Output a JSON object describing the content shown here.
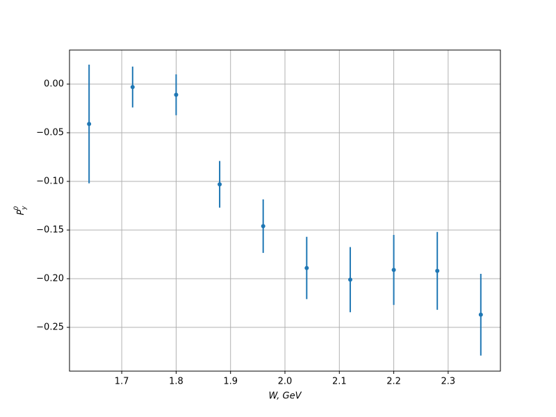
{
  "chart_data": {
    "type": "errorbar",
    "x": [
      1.64,
      1.72,
      1.8,
      1.88,
      1.96,
      2.04,
      2.12,
      2.2,
      2.28,
      2.36
    ],
    "values": [
      -0.041,
      -0.003,
      -0.011,
      -0.103,
      -0.146,
      -0.189,
      -0.201,
      -0.191,
      -0.192,
      -0.237
    ],
    "errors": [
      0.061,
      0.021,
      0.021,
      0.024,
      0.0275,
      0.032,
      0.0335,
      0.036,
      0.04,
      0.042
    ],
    "color": "#1f77b4",
    "xlabel": "W, GeV",
    "ylabel": {
      "base": "P",
      "sub": "y",
      "sup": "0"
    },
    "xlim": [
      1.604,
      2.396
    ],
    "ylim": [
      -0.295,
      0.035
    ],
    "xticks": [
      1.7,
      1.8,
      1.9,
      {
        "value": 2.0,
        "label": "2.0"
      },
      2.1,
      2.2,
      2.3
    ],
    "yticks": [
      {
        "value": 0,
        "label": "0.00"
      },
      {
        "value": -0.05,
        "label": "−0.05"
      },
      {
        "value": -0.1,
        "label": "−0.10"
      },
      {
        "value": -0.15,
        "label": "−0.15"
      },
      {
        "value": -0.2,
        "label": "−0.20"
      },
      {
        "value": -0.25,
        "label": "−0.25"
      }
    ],
    "grid": true
  }
}
